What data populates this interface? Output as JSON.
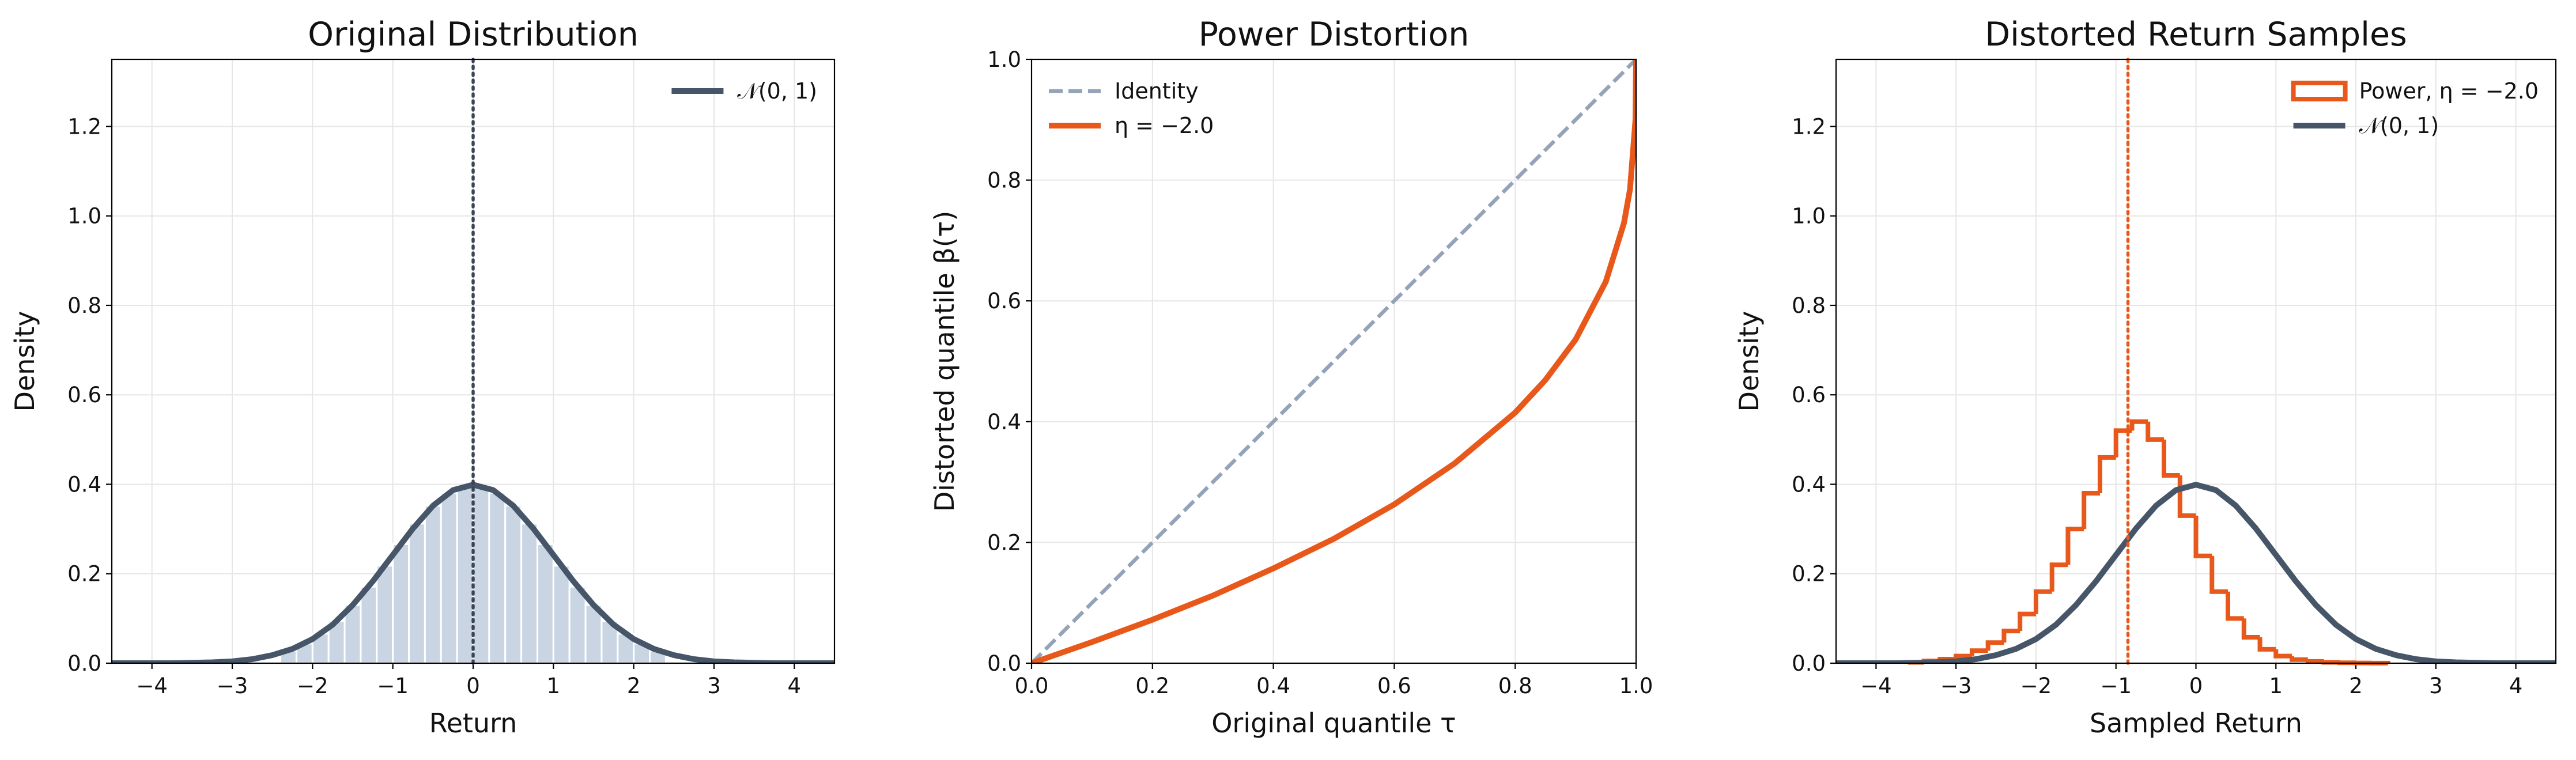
{
  "chart_data": [
    {
      "type": "histogram",
      "title": "Original Distribution",
      "xlabel": "Return",
      "ylabel": "Density",
      "xlim": [
        -4.5,
        4.5
      ],
      "ylim": [
        0,
        1.35
      ],
      "xticks": [
        {
          "value": -4,
          "label": "−4"
        },
        {
          "value": -3,
          "label": "−3"
        },
        {
          "value": -2,
          "label": "−2"
        },
        {
          "value": -1,
          "label": "−1"
        },
        0,
        1,
        2,
        3,
        4
      ],
      "yticks": [
        {
          "value": 0,
          "label": "0.0"
        },
        0.2,
        0.4,
        0.6,
        0.8,
        {
          "value": 1,
          "label": "1.0"
        },
        1.2
      ],
      "grid": true,
      "legend": "upper-right",
      "series": [
        {
          "type": "bars",
          "color": "#c9d5e3",
          "bins": [
            -2.4,
            -2.2,
            -2.0,
            -1.8,
            -1.6,
            -1.4,
            -1.2,
            -1.0,
            -0.8,
            -0.6,
            -0.4,
            -0.2,
            0,
            0.2,
            0.4,
            0.6,
            0.8,
            1.0,
            1.2,
            1.4,
            1.6,
            1.8,
            2.0,
            2.2,
            2.4
          ],
          "values": [
            0.028,
            0.044,
            0.066,
            0.094,
            0.13,
            0.171,
            0.218,
            0.266,
            0.312,
            0.352,
            0.381,
            0.397,
            0.397,
            0.381,
            0.352,
            0.312,
            0.266,
            0.218,
            0.171,
            0.13,
            0.094,
            0.066,
            0.044,
            0.028
          ]
        },
        {
          "type": "line",
          "name": "𝒩(0, 1)",
          "color": "#475569",
          "x": [
            -4.5,
            -4.25,
            -4,
            -3.75,
            -3.5,
            -3.25,
            -3,
            -2.75,
            -2.5,
            -2.25,
            -2,
            -1.75,
            -1.5,
            -1.25,
            -1,
            -0.75,
            -0.5,
            -0.25,
            0,
            0.25,
            0.5,
            0.75,
            1,
            1.25,
            1.5,
            1.75,
            2,
            2.25,
            2.5,
            2.75,
            3,
            3.25,
            3.5,
            3.75,
            4,
            4.25,
            4.5
          ],
          "values": [
            0,
            0,
            0,
            0,
            0.001,
            0.002,
            0.004,
            0.009,
            0.018,
            0.032,
            0.054,
            0.086,
            0.13,
            0.183,
            0.242,
            0.301,
            0.352,
            0.387,
            0.399,
            0.387,
            0.352,
            0.301,
            0.242,
            0.183,
            0.13,
            0.086,
            0.054,
            0.032,
            0.018,
            0.009,
            0.004,
            0.002,
            0.001,
            0,
            0,
            0,
            0
          ]
        }
      ],
      "vlines": [
        {
          "x": 0,
          "color": "#3d4454"
        }
      ]
    },
    {
      "type": "line",
      "title": "Power Distortion",
      "xlabel": "Original quantile τ",
      "ylabel": "Distorted quantile β(τ)",
      "xlim": [
        0,
        1
      ],
      "ylim": [
        0,
        1
      ],
      "xticks": [
        {
          "value": 0,
          "label": "0.0"
        },
        0.2,
        0.4,
        0.6,
        0.8,
        {
          "value": 1,
          "label": "1.0"
        }
      ],
      "yticks": [
        {
          "value": 0,
          "label": "0.0"
        },
        0.2,
        0.4,
        0.6,
        0.8,
        {
          "value": 1,
          "label": "1.0"
        }
      ],
      "grid": true,
      "legend": "upper-left",
      "series": [
        {
          "type": "line",
          "name": "Identity",
          "color": "#94a3b8",
          "linestyle": "dashed",
          "x": [
            0,
            1
          ],
          "values": [
            0,
            1
          ]
        },
        {
          "type": "line",
          "name": "η = −2.0",
          "color": "#e8581a",
          "x": [
            0,
            0.1,
            0.2,
            0.3,
            0.4,
            0.5,
            0.6,
            0.7,
            0.8,
            0.85,
            0.9,
            0.95,
            0.98,
            0.99,
            0.999,
            1
          ],
          "values": [
            0,
            0.035,
            0.072,
            0.112,
            0.157,
            0.206,
            0.263,
            0.331,
            0.415,
            0.469,
            0.536,
            0.632,
            0.729,
            0.785,
            0.9,
            1
          ]
        }
      ]
    },
    {
      "type": "histogram",
      "title": "Distorted Return Samples",
      "xlabel": "Sampled Return",
      "ylabel": "Density",
      "xlim": [
        -4.5,
        4.5
      ],
      "ylim": [
        0,
        1.35
      ],
      "xticks": [
        {
          "value": -4,
          "label": "−4"
        },
        {
          "value": -3,
          "label": "−3"
        },
        {
          "value": -2,
          "label": "−2"
        },
        {
          "value": -1,
          "label": "−1"
        },
        0,
        1,
        2,
        3,
        4
      ],
      "yticks": [
        {
          "value": 0,
          "label": "0.0"
        },
        0.2,
        0.4,
        0.6,
        0.8,
        {
          "value": 1,
          "label": "1.0"
        },
        1.2
      ],
      "grid": true,
      "legend": "upper-right",
      "series": [
        {
          "type": "step",
          "name": "Power, η = −2.0",
          "color": "#e8581a",
          "bins": [
            -3.6,
            -3.4,
            -3.2,
            -3.0,
            -2.8,
            -2.6,
            -2.4,
            -2.2,
            -2.0,
            -1.8,
            -1.6,
            -1.4,
            -1.2,
            -1.0,
            -0.8,
            -0.6,
            -0.4,
            -0.2,
            0,
            0.2,
            0.4,
            0.6,
            0.8,
            1.0,
            1.2,
            1.4,
            1.6,
            1.8,
            2.0,
            2.2,
            2.4
          ],
          "values": [
            0.002,
            0.005,
            0.009,
            0.016,
            0.028,
            0.046,
            0.072,
            0.11,
            0.16,
            0.22,
            0.3,
            0.38,
            0.46,
            0.52,
            0.54,
            0.5,
            0.42,
            0.33,
            0.24,
            0.16,
            0.1,
            0.058,
            0.031,
            0.016,
            0.008,
            0.004,
            0.002,
            0.001,
            0.0005,
            0.0002
          ]
        },
        {
          "type": "line",
          "name": "𝒩(0, 1)",
          "color": "#475569",
          "x": [
            -4.5,
            -4.25,
            -4,
            -3.75,
            -3.5,
            -3.25,
            -3,
            -2.75,
            -2.5,
            -2.25,
            -2,
            -1.75,
            -1.5,
            -1.25,
            -1,
            -0.75,
            -0.5,
            -0.25,
            0,
            0.25,
            0.5,
            0.75,
            1,
            1.25,
            1.5,
            1.75,
            2,
            2.25,
            2.5,
            2.75,
            3,
            3.25,
            3.5,
            3.75,
            4,
            4.25,
            4.5
          ],
          "values": [
            0,
            0,
            0,
            0,
            0.001,
            0.002,
            0.004,
            0.009,
            0.018,
            0.032,
            0.054,
            0.086,
            0.13,
            0.183,
            0.242,
            0.301,
            0.352,
            0.387,
            0.399,
            0.387,
            0.352,
            0.301,
            0.242,
            0.183,
            0.13,
            0.086,
            0.054,
            0.032,
            0.018,
            0.009,
            0.004,
            0.002,
            0.001,
            0,
            0,
            0,
            0
          ]
        }
      ],
      "vlines": [
        {
          "x": -0.85,
          "color": "#e8581a"
        }
      ]
    }
  ]
}
